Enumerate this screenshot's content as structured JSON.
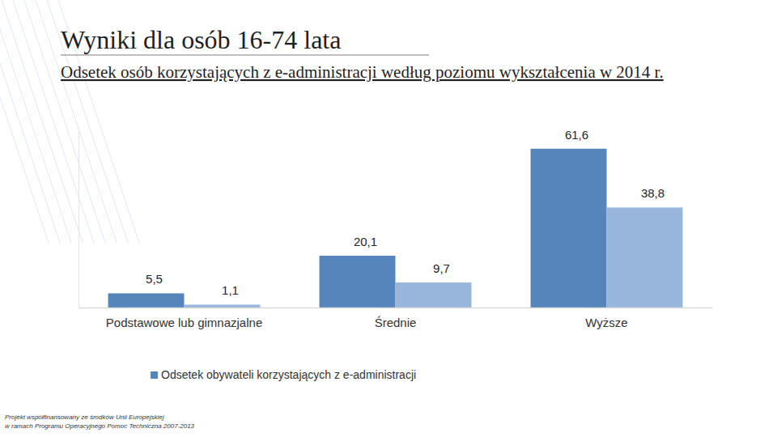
{
  "chart_data": {
    "type": "bar",
    "title": "Wyniki dla osób 16-74 lata",
    "subtitle": "Odsetek osób korzystających z e-administracji według poziomu wykształcenia w 2014 r.",
    "categories": [
      "Podstawowe lub gimnazjalne",
      "Średnie",
      "Wyższe"
    ],
    "series": [
      {
        "name": "Odsetek obywateli korzystających z e-administracji",
        "color": "#5585bb",
        "values": [
          5.5,
          20.1,
          61.6
        ],
        "value_labels": [
          "5,5",
          "20,1",
          "61,6"
        ]
      },
      {
        "color": "#98b6db",
        "values": [
          1.1,
          9.7,
          38.8
        ],
        "value_labels": [
          "1,1",
          "9,7",
          "38,8"
        ]
      }
    ],
    "ylim": [
      0,
      70
    ],
    "yticks": [],
    "tick_labels": "x",
    "data_labels": true,
    "legend": "bottom",
    "grid": false,
    "annotations": [
      "Projekt współfinansowany ze środków Unii Europejskiej",
      "w ramach Programu Operacyjnego Pomoc Techniczna 2007-2013"
    ]
  }
}
